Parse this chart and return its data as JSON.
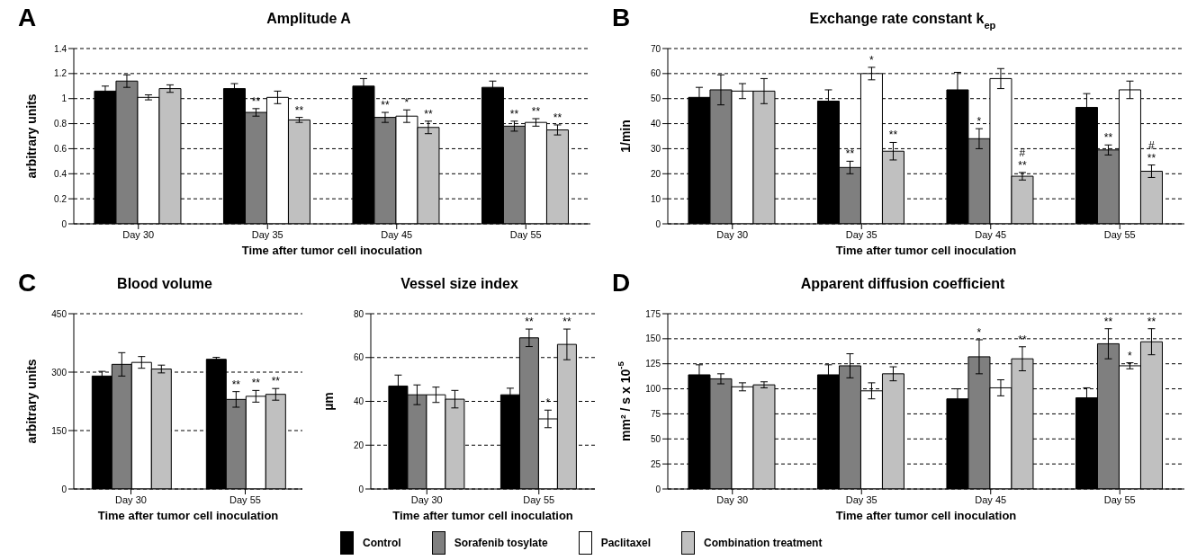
{
  "chart_data": [
    {
      "type": "bar",
      "title": "Amplitude A",
      "xlabel": "Time after tumor cell inoculation",
      "ylabel": "arbitrary units",
      "annotations": [
        "A"
      ],
      "categories": [
        "Day 30",
        "Day 35",
        "Day 45",
        "Day 55"
      ],
      "ylim": [
        0,
        1.4
      ],
      "yticks": [
        0,
        0.2,
        0.4,
        0.6,
        0.8,
        1,
        1.2,
        1.4
      ],
      "grid": "y",
      "series": [
        {
          "color": "#000000",
          "values": [
            1.06,
            1.08,
            1.1,
            1.09
          ],
          "errors": [
            0.04,
            0.04,
            0.06,
            0.05
          ]
        },
        {
          "color": "#7f7f7f",
          "values": [
            1.14,
            0.89,
            0.85,
            0.78
          ],
          "errors": [
            0.05,
            0.03,
            0.04,
            0.04
          ],
          "value_labels": [
            null,
            "**",
            "**",
            "**"
          ]
        },
        {
          "color": "#ffffff",
          "values": [
            1.01,
            1.01,
            0.86,
            0.81
          ],
          "errors": [
            0.02,
            0.05,
            0.05,
            0.03
          ],
          "value_labels": [
            null,
            null,
            "*",
            "**"
          ]
        },
        {
          "color": "#c0c0c0",
          "values": [
            1.08,
            0.83,
            0.77,
            0.75
          ],
          "errors": [
            0.03,
            0.02,
            0.05,
            0.04
          ],
          "value_labels": [
            null,
            "**",
            "**",
            "**"
          ]
        }
      ]
    },
    {
      "type": "bar",
      "title": "Exchange rate constant k$_{ep}$",
      "xlabel": "Time after tumor cell inoculation",
      "ylabel": "1/min",
      "annotations": [
        "B"
      ],
      "categories": [
        "Day 30",
        "Day 35",
        "Day 45",
        "Day 55"
      ],
      "ylim": [
        0,
        70
      ],
      "yticks": [
        0,
        10,
        20,
        30,
        40,
        50,
        60,
        70
      ],
      "grid": "y",
      "series": [
        {
          "color": "#000000",
          "values": [
            50.5,
            49,
            53.5,
            46.5
          ],
          "errors": [
            4,
            4.5,
            7,
            5.5
          ]
        },
        {
          "color": "#7f7f7f",
          "values": [
            53.5,
            22.5,
            34,
            29.5
          ],
          "errors": [
            6,
            2.5,
            4,
            2
          ],
          "value_labels": [
            null,
            "**",
            "*",
            "**"
          ]
        },
        {
          "color": "#ffffff",
          "values": [
            53,
            60,
            58,
            53.5
          ],
          "errors": [
            3,
            2.5,
            4,
            3.5
          ],
          "value_labels": [
            null,
            "*",
            null,
            null
          ]
        },
        {
          "color": "#c0c0c0",
          "values": [
            53,
            29,
            19,
            21
          ],
          "errors": [
            5,
            3.5,
            1.5,
            2.5
          ],
          "value_labels": [
            null,
            "**",
            "#\n**",
            "#\n**"
          ]
        }
      ]
    },
    {
      "type": "bar",
      "title": "Blood volume",
      "xlabel": "Time after tumor cell inoculation",
      "ylabel": "arbitrary units",
      "annotations": [
        "C"
      ],
      "categories": [
        "Day 30",
        "Day 55"
      ],
      "ylim": [
        0,
        450
      ],
      "yticks": [
        0,
        150,
        300,
        450
      ],
      "grid": "y",
      "series": [
        {
          "color": "#000000",
          "values": [
            290,
            333
          ],
          "errors": [
            12,
            5
          ]
        },
        {
          "color": "#7f7f7f",
          "values": [
            320,
            230
          ],
          "errors": [
            30,
            20
          ],
          "value_labels": [
            null,
            "**"
          ]
        },
        {
          "color": "#ffffff",
          "values": [
            325,
            238
          ],
          "errors": [
            15,
            15
          ],
          "value_labels": [
            null,
            "**"
          ]
        },
        {
          "color": "#c0c0c0",
          "values": [
            308,
            243
          ],
          "errors": [
            10,
            15
          ],
          "value_labels": [
            null,
            "**"
          ]
        }
      ]
    },
    {
      "type": "bar",
      "title": "Vessel size index",
      "xlabel": "Time after tumor cell inoculation",
      "ylabel": "µm",
      "categories": [
        "Day 30",
        "Day 55"
      ],
      "ylim": [
        0,
        80
      ],
      "yticks": [
        0,
        20,
        40,
        60,
        80
      ],
      "grid": "y",
      "series": [
        {
          "color": "#000000",
          "values": [
            47,
            43
          ],
          "errors": [
            5,
            3
          ]
        },
        {
          "color": "#7f7f7f",
          "values": [
            43,
            69
          ],
          "errors": [
            4.5,
            4
          ],
          "value_labels": [
            null,
            "**"
          ]
        },
        {
          "color": "#ffffff",
          "values": [
            43,
            32
          ],
          "errors": [
            3.5,
            4
          ],
          "value_labels": [
            null,
            "*"
          ]
        },
        {
          "color": "#c0c0c0",
          "values": [
            41,
            66
          ],
          "errors": [
            4,
            7
          ],
          "value_labels": [
            null,
            "**"
          ]
        }
      ]
    },
    {
      "type": "bar",
      "title": "Apparent diffusion coefficient",
      "xlabel": "Time after tumor cell inoculation",
      "ylabel": "mm² / s x 10$^{-5}$",
      "annotations": [
        "D"
      ],
      "categories": [
        "Day 30",
        "Day 35",
        "Day 45",
        "Day 55"
      ],
      "ylim": [
        0,
        175
      ],
      "yticks": [
        0,
        25,
        50,
        75,
        100,
        125,
        150,
        175
      ],
      "grid": "y",
      "legend": "bottom",
      "series": [
        {
          "name": "Control",
          "color": "#000000",
          "values": [
            114,
            114,
            90,
            91
          ],
          "errors": [
            10,
            10,
            10,
            10
          ]
        },
        {
          "name": "Sorafenib tosylate",
          "color": "#7f7f7f",
          "values": [
            110,
            123,
            132,
            145
          ],
          "errors": [
            5,
            12,
            17,
            15
          ],
          "value_labels": [
            null,
            null,
            "*",
            "**"
          ]
        },
        {
          "name": "Paclitaxel",
          "color": "#ffffff",
          "values": [
            102,
            98,
            101,
            123
          ],
          "errors": [
            4,
            8,
            8,
            3
          ],
          "value_labels": [
            null,
            null,
            null,
            "*"
          ]
        },
        {
          "name": "Combination treatment",
          "color": "#c0c0c0",
          "values": [
            104,
            115,
            130,
            147
          ],
          "errors": [
            3,
            7,
            12,
            13
          ],
          "value_labels": [
            null,
            null,
            "**",
            "**"
          ]
        }
      ]
    }
  ]
}
